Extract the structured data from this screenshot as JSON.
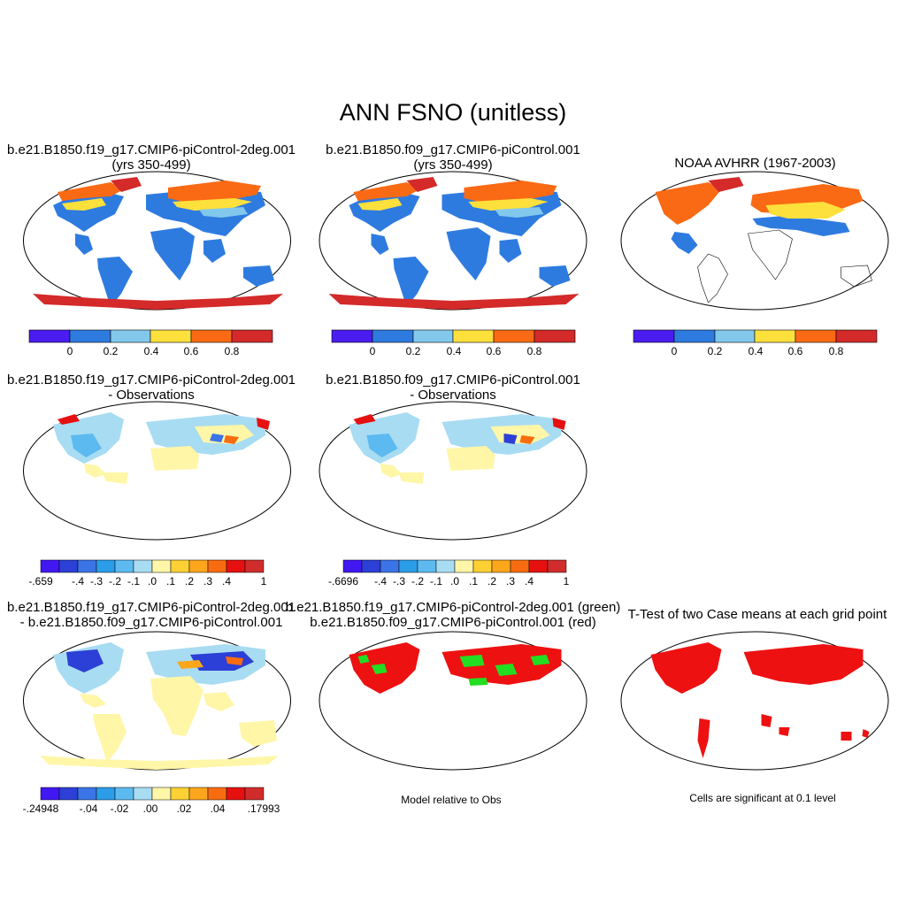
{
  "title": "ANN FSNO (unitless)",
  "panels": [
    {
      "id": "p1",
      "title1": "b.e21.B1850.f19_g17.CMIP6-piControl-2deg.001",
      "title2": "(yrs 350-499)"
    },
    {
      "id": "p2",
      "title1": "b.e21.B1850.f09_g17.CMIP6-piControl.001",
      "title2": "(yrs 350-499)"
    },
    {
      "id": "p3",
      "title1": "NOAA AVHRR (1967-2003)",
      "title2": ""
    },
    {
      "id": "p4",
      "title1": "b.e21.B1850.f19_g17.CMIP6-piControl-2deg.001",
      "title2": "- Observations"
    },
    {
      "id": "p5",
      "title1": "b.e21.B1850.f09_g17.CMIP6-piControl.001",
      "title2": "- Observations"
    },
    {
      "id": "p7",
      "title1": "b.e21.B1850.f19_g17.CMIP6-piControl-2deg.001",
      "title2": "- b.e21.B1850.f09_g17.CMIP6-piControl.001"
    },
    {
      "id": "p8",
      "title1": "b.e21.B1850.f19_g17.CMIP6-piControl-2deg.001 (green)",
      "title2": "b.e21.B1850.f09_g17.CMIP6-piControl.001 (red)"
    },
    {
      "id": "p9",
      "title1": "T-Test of two Case means at each grid point",
      "title2": ""
    }
  ],
  "colorbars": {
    "fraction": {
      "colors": [
        "#4a1cf0",
        "#2e7be0",
        "#82c8ec",
        "#fde03c",
        "#fa6a14",
        "#d42a2a"
      ],
      "labels": [
        "0",
        "0.2",
        "0.4",
        "0.6",
        "0.8"
      ]
    },
    "diff_obs_1": {
      "colors": [
        "#4118f2",
        "#2c3fd6",
        "#3a74e6",
        "#2b9de8",
        "#5cbaf0",
        "#a8dcf2",
        "#fff6a8",
        "#fed034",
        "#fca61c",
        "#f86c10",
        "#e61010",
        "#d02c2c"
      ],
      "labels": [
        "-.659",
        "-.4",
        "-.3",
        "-.2",
        "-.1",
        ".0",
        ".1",
        ".2",
        ".3",
        ".4",
        "1"
      ]
    },
    "diff_obs_2": {
      "colors": [
        "#4118f2",
        "#2c3fd6",
        "#3a74e6",
        "#2b9de8",
        "#5cbaf0",
        "#a8dcf2",
        "#fff6a8",
        "#fed034",
        "#fca61c",
        "#f86c10",
        "#e61010",
        "#d02c2c"
      ],
      "labels": [
        "-.6696",
        "-.4",
        "-.3",
        "-.2",
        "-.1",
        ".0",
        ".1",
        ".2",
        ".3",
        ".4",
        "1"
      ]
    },
    "diff_cases": {
      "colors": [
        "#4118f2",
        "#2c3fd6",
        "#3a74e6",
        "#2b9de8",
        "#5cbaf0",
        "#a8dcf2",
        "#fff6a8",
        "#fed034",
        "#fca61c",
        "#f86c10",
        "#e61010",
        "#d02c2c"
      ],
      "labels": [
        "-.24948",
        "-.04",
        "-.02",
        ".00",
        ".02",
        ".04",
        ".17993"
      ]
    }
  },
  "notes": {
    "relative": "Model relative to Obs",
    "significance": "Cells are significant at 0.1 level"
  },
  "colors": {
    "land_model": "#2e7be0",
    "green": "#22dd22",
    "red": "#ee1111",
    "light_yellow": "#fff6a8"
  }
}
